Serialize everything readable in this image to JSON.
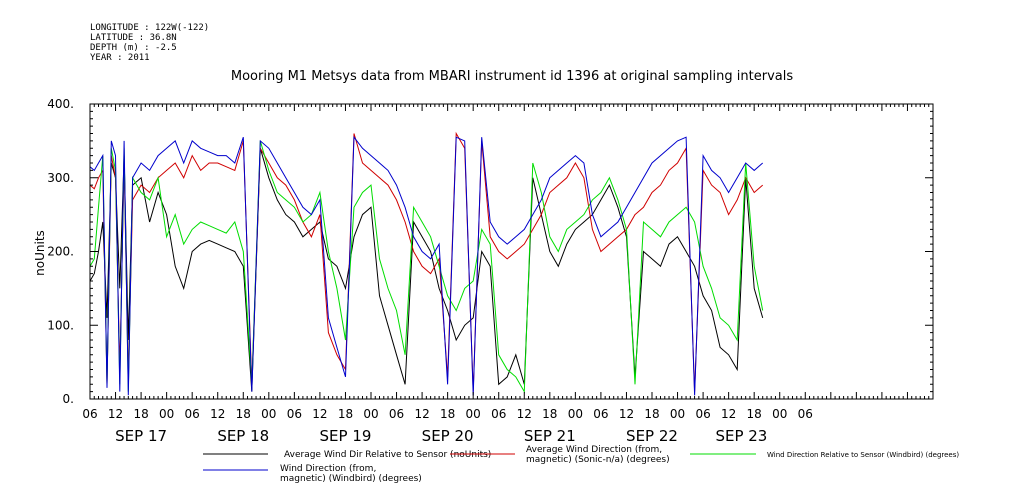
{
  "meta": {
    "longitude": "LONGITUDE : 122W(-122)",
    "latitude": "LATITUDE : 36.8N",
    "depth": "DEPTH (m) : -2.5",
    "year": "YEAR : 2011"
  },
  "chart_data": {
    "type": "line",
    "title": "Mooring M1 Metsys data from MBARI instrument id 1396 at original sampling intervals",
    "ylabel": "noUnits",
    "ylim": [
      0,
      400
    ],
    "yticks": [
      "0.",
      "100.",
      "200.",
      "300.",
      "400."
    ],
    "ytick_values": [
      0,
      100,
      200,
      300,
      400
    ],
    "xlim": [
      0,
      198
    ],
    "hour_ticks": [
      "06",
      "12",
      "18",
      "00",
      "06",
      "12",
      "18",
      "00",
      "06",
      "12",
      "18",
      "00",
      "06",
      "12",
      "18",
      "00",
      "06",
      "12",
      "18",
      "00",
      "06",
      "12",
      "18",
      "00",
      "06",
      "12",
      "18",
      "00",
      "06"
    ],
    "dates": [
      {
        "label": "SEP 17",
        "hour": 12
      },
      {
        "label": "SEP 18",
        "hour": 36
      },
      {
        "label": "SEP 19",
        "hour": 60
      },
      {
        "label": "SEP 20",
        "hour": 84
      },
      {
        "label": "SEP 21",
        "hour": 108
      },
      {
        "label": "SEP 22",
        "hour": 132
      },
      {
        "label": "SEP 23",
        "hour": 153
      }
    ],
    "series": [
      {
        "name": "Average Wind Dir Relative to Sensor (noUnits)",
        "color": "#000000",
        "x": [
          0,
          1,
          2,
          3,
          4,
          5,
          6,
          7,
          8,
          9,
          10,
          12,
          14,
          16,
          18,
          20,
          22,
          24,
          26,
          28,
          30,
          32,
          34,
          36,
          38,
          40,
          42,
          44,
          46,
          48,
          50,
          52,
          54,
          56,
          58,
          60,
          62,
          64,
          66,
          68,
          70,
          72,
          74,
          76,
          78,
          80,
          82,
          84,
          86,
          88,
          90,
          92,
          94,
          96,
          98,
          100,
          102,
          104,
          106,
          108,
          110,
          112,
          114,
          116,
          118,
          120,
          122,
          124,
          126,
          128,
          130,
          132,
          134,
          136,
          138,
          140,
          142,
          144,
          146,
          148,
          150,
          152,
          154,
          156,
          158
        ],
        "y": [
          160,
          170,
          200,
          240,
          110,
          320,
          300,
          150,
          330,
          80,
          290,
          300,
          240,
          280,
          250,
          180,
          150,
          200,
          210,
          215,
          210,
          205,
          200,
          180,
          10,
          340,
          300,
          270,
          250,
          240,
          220,
          230,
          240,
          190,
          180,
          150,
          220,
          250,
          260,
          140,
          100,
          60,
          20,
          240,
          220,
          200,
          150,
          120,
          80,
          100,
          110,
          200,
          180,
          20,
          30,
          60,
          20,
          300,
          250,
          200,
          180,
          210,
          230,
          240,
          250,
          270,
          290,
          260,
          220,
          30,
          200,
          190,
          180,
          210,
          220,
          200,
          180,
          140,
          120,
          70,
          60,
          40,
          300,
          150,
          110
        ]
      },
      {
        "name": "Average Wind Direction (from, magnetic) (Sonic-n/a) (degrees)",
        "color": "#d00000",
        "x": [
          0,
          1,
          2,
          3,
          4,
          5,
          6,
          7,
          8,
          9,
          10,
          12,
          14,
          16,
          18,
          20,
          22,
          24,
          26,
          28,
          30,
          32,
          34,
          36,
          38,
          40,
          42,
          44,
          46,
          48,
          50,
          52,
          54,
          56,
          58,
          60,
          62,
          64,
          66,
          68,
          70,
          72,
          74,
          76,
          78,
          80,
          82,
          84,
          86,
          88,
          90,
          92,
          94,
          96,
          98,
          100,
          102,
          104,
          106,
          108,
          110,
          112,
          114,
          116,
          118,
          120,
          122,
          124,
          126,
          128,
          130,
          132,
          134,
          136,
          138,
          140,
          142,
          144,
          146,
          148,
          150,
          152,
          154,
          156,
          158
        ],
        "y": [
          290,
          285,
          300,
          310,
          20,
          330,
          300,
          40,
          320,
          30,
          270,
          290,
          280,
          300,
          310,
          320,
          300,
          330,
          310,
          320,
          320,
          315,
          310,
          350,
          20,
          340,
          320,
          300,
          290,
          270,
          240,
          220,
          250,
          90,
          60,
          40,
          360,
          320,
          310,
          300,
          290,
          270,
          240,
          200,
          180,
          170,
          190,
          30,
          360,
          340,
          10,
          350,
          220,
          200,
          190,
          200,
          210,
          230,
          250,
          280,
          290,
          300,
          320,
          300,
          230,
          200,
          210,
          220,
          230,
          250,
          260,
          280,
          290,
          310,
          320,
          340,
          10,
          310,
          290,
          280,
          250,
          270,
          300,
          280,
          290
        ]
      },
      {
        "name": "Wind Direction Relative to Sensor (Windbird) (degrees)",
        "color": "#00dd00",
        "x": [
          0,
          1,
          2,
          3,
          4,
          5,
          6,
          7,
          8,
          9,
          10,
          12,
          14,
          16,
          18,
          20,
          22,
          24,
          26,
          28,
          30,
          32,
          34,
          36,
          38,
          40,
          42,
          44,
          46,
          48,
          50,
          52,
          54,
          56,
          58,
          60,
          62,
          64,
          66,
          68,
          70,
          72,
          74,
          76,
          78,
          80,
          82,
          84,
          86,
          88,
          90,
          92,
          94,
          96,
          98,
          100,
          102,
          104,
          106,
          108,
          110,
          112,
          114,
          116,
          118,
          120,
          122,
          124,
          126,
          128,
          130,
          132,
          134,
          136,
          138,
          140,
          142,
          144,
          146,
          148,
          150,
          152,
          154,
          156,
          158
        ],
        "y": [
          180,
          190,
          260,
          330,
          20,
          340,
          310,
          20,
          340,
          10,
          300,
          280,
          270,
          300,
          220,
          250,
          210,
          230,
          240,
          235,
          230,
          225,
          240,
          200,
          20,
          350,
          310,
          280,
          270,
          260,
          240,
          250,
          280,
          200,
          150,
          80,
          260,
          280,
          290,
          190,
          150,
          120,
          60,
          260,
          240,
          220,
          180,
          140,
          120,
          150,
          160,
          230,
          210,
          60,
          40,
          30,
          10,
          320,
          280,
          220,
          200,
          230,
          240,
          250,
          270,
          280,
          300,
          270,
          230,
          20,
          240,
          230,
          220,
          240,
          250,
          260,
          240,
          180,
          150,
          110,
          100,
          80,
          320,
          180,
          120
        ]
      },
      {
        "name": "Wind Direction (from, magnetic) (Windbird) (degrees)",
        "color": "#0000cc",
        "x": [
          0,
          1,
          2,
          3,
          4,
          5,
          6,
          7,
          8,
          9,
          10,
          12,
          14,
          16,
          18,
          20,
          22,
          24,
          26,
          28,
          30,
          32,
          34,
          36,
          38,
          40,
          42,
          44,
          46,
          48,
          50,
          52,
          54,
          56,
          58,
          60,
          62,
          64,
          66,
          68,
          70,
          72,
          74,
          76,
          78,
          80,
          82,
          84,
          86,
          88,
          90,
          92,
          94,
          96,
          98,
          100,
          102,
          104,
          106,
          108,
          110,
          112,
          114,
          116,
          118,
          120,
          122,
          124,
          126,
          128,
          130,
          132,
          134,
          136,
          138,
          140,
          142,
          144,
          146,
          148,
          150,
          152,
          154,
          156,
          158
        ],
        "y": [
          315,
          310,
          320,
          330,
          15,
          350,
          330,
          10,
          350,
          5,
          300,
          320,
          310,
          330,
          340,
          350,
          320,
          350,
          340,
          335,
          330,
          330,
          320,
          355,
          10,
          350,
          340,
          320,
          300,
          280,
          260,
          250,
          270,
          110,
          70,
          30,
          355,
          340,
          330,
          320,
          310,
          290,
          260,
          220,
          200,
          190,
          210,
          20,
          355,
          350,
          5,
          355,
          240,
          220,
          210,
          220,
          230,
          250,
          270,
          300,
          310,
          320,
          330,
          320,
          250,
          220,
          230,
          240,
          260,
          280,
          300,
          320,
          330,
          340,
          350,
          355,
          5,
          330,
          310,
          300,
          280,
          300,
          320,
          310,
          320
        ]
      }
    ]
  }
}
